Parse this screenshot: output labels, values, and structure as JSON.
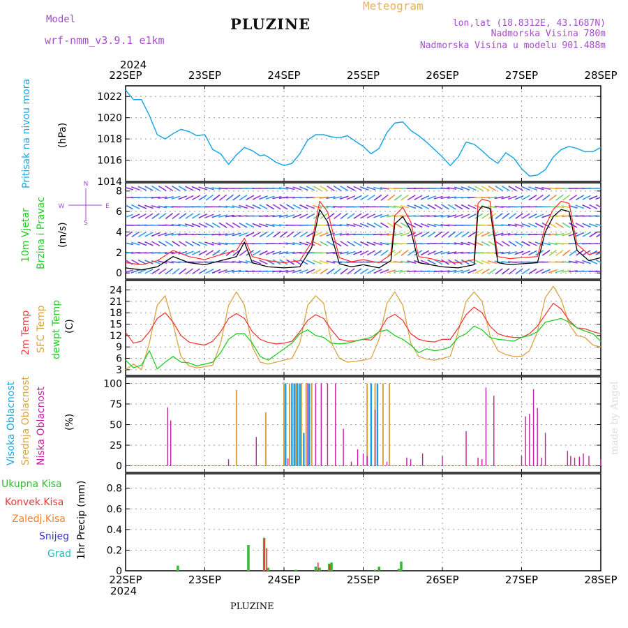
{
  "header": {
    "model_label": "Model",
    "model_name": "wrf-nmm_v3.9.1  e1km",
    "title": "PLUZINE",
    "product": "Meteogram",
    "lonlat": "lon,lat (18.8312E, 43.1687N)",
    "elevation": "Nadmorska Visina 780m",
    "model_elevation": "Nadmorska Visina u modelu 901.488m"
  },
  "footer": {
    "station": "PLUZINE",
    "credit": "made by Angel"
  },
  "colors": {
    "pressure": "#1aa7e6",
    "speed": "#000000",
    "gust": "#ff2a2a",
    "t2m": "#ee3b3b",
    "sfc": "#d9a441",
    "dew": "#22cc22",
    "high_cloud": "#1a9ee6",
    "mid_cloud": "#dba23c",
    "low_cloud": "#c21ea0",
    "total_precip": "#33bb33",
    "conv_precip": "#ee3333",
    "frz_precip": "#ff7f24",
    "snow": "#3333dd",
    "hail": "#22bbbb",
    "purple": "#a64dcc"
  },
  "panels": {
    "pressure": {
      "label": "Pritisak na nivou mora",
      "unit": "(hPa)"
    },
    "wind": {
      "label1": "10m Vjetar",
      "label2": "Brzina i Pravac",
      "unit": "(m/s)"
    },
    "temp": {
      "label1": "2m Temp",
      "label2": "SFC Temp",
      "label3": "dewpt Temp",
      "unit": "(C)"
    },
    "cloud": {
      "label1": "Visoka Oblacnost",
      "label2": "Srednja Oblacnost",
      "label3": "Niska Oblacnost",
      "unit": "(%)"
    },
    "precip": {
      "l1": "Ukupna Kisa",
      "l2": "Konvek.Kisa",
      "l3": "Zaledj.Kisa",
      "l4": "Snijeg",
      "l5": "Grad",
      "unit": "1hr Precip (mm)"
    }
  },
  "compass": {
    "n": "N",
    "s": "S",
    "e": "E",
    "w": "W"
  },
  "chart_data": {
    "type": "line",
    "x": {
      "year": "2024",
      "ticks": [
        "22SEP",
        "23SEP",
        "24SEP",
        "25SEP",
        "26SEP",
        "27SEP",
        "28SEP"
      ],
      "start": "2024-09-22T00",
      "end": "2024-09-28T00",
      "unit": "days"
    },
    "pressure": {
      "ylim": [
        1014,
        1023
      ],
      "yticks": [
        1014,
        1016,
        1018,
        1020,
        1022
      ],
      "t": [
        0,
        0.1,
        0.2,
        0.3,
        0.4,
        0.5,
        0.6,
        0.7,
        0.8,
        0.9,
        1.0,
        1.1,
        1.2,
        1.3,
        1.4,
        1.5,
        1.6,
        1.7,
        1.75,
        1.8,
        1.9,
        2.0,
        2.1,
        2.2,
        2.3,
        2.4,
        2.5,
        2.6,
        2.7,
        2.8,
        2.9,
        3.0,
        3.1,
        3.2,
        3.3,
        3.4,
        3.5,
        3.6,
        3.7,
        3.8,
        3.9,
        4.0,
        4.1,
        4.2,
        4.3,
        4.4,
        4.5,
        4.6,
        4.7,
        4.8,
        4.9,
        5.0,
        5.1,
        5.2,
        5.3,
        5.4,
        5.5,
        5.6,
        5.7,
        5.8,
        5.9,
        6.0
      ],
      "values": [
        1022.6,
        1021.7,
        1021.7,
        1020.2,
        1018.4,
        1018.0,
        1018.5,
        1018.9,
        1018.7,
        1018.3,
        1018.4,
        1017.0,
        1016.6,
        1015.6,
        1016.5,
        1017.2,
        1016.9,
        1016.4,
        1016.5,
        1016.3,
        1015.8,
        1015.5,
        1015.7,
        1016.6,
        1017.9,
        1018.4,
        1018.4,
        1018.2,
        1018.1,
        1018.3,
        1017.8,
        1017.3,
        1016.6,
        1017.1,
        1018.6,
        1019.5,
        1019.6,
        1018.8,
        1018.3,
        1017.7,
        1017.0,
        1016.3,
        1015.5,
        1016.3,
        1017.7,
        1017.5,
        1016.9,
        1016.2,
        1015.7,
        1016.7,
        1016.2,
        1015.2,
        1014.5,
        1014.6,
        1015.1,
        1016.3,
        1017.0,
        1017.3,
        1017.1,
        1016.8,
        1016.8,
        1017.2
      ]
    },
    "wind": {
      "ylim": [
        -0.6,
        8.8
      ],
      "yticks": [
        0,
        2,
        4,
        6,
        8
      ],
      "t": [
        0,
        0.2,
        0.4,
        0.6,
        0.8,
        1.0,
        1.2,
        1.4,
        1.5,
        1.6,
        1.8,
        2.0,
        2.2,
        2.35,
        2.45,
        2.55,
        2.7,
        2.85,
        3.0,
        3.2,
        3.35,
        3.4,
        3.5,
        3.6,
        3.7,
        3.85,
        4.0,
        4.2,
        4.4,
        4.45,
        4.5,
        4.6,
        4.7,
        4.85,
        5.0,
        5.2,
        5.3,
        5.4,
        5.5,
        5.6,
        5.7,
        5.85,
        6.0
      ],
      "speed": [
        0.5,
        0.3,
        0.6,
        1.6,
        1.0,
        0.8,
        1.2,
        1.6,
        3.0,
        1.0,
        0.6,
        0.5,
        0.6,
        2.5,
        6.2,
        5.0,
        0.9,
        0.6,
        0.8,
        0.5,
        1.2,
        4.8,
        5.5,
        4.2,
        1.0,
        0.8,
        0.6,
        0.5,
        0.8,
        6.0,
        6.5,
        6.3,
        1.0,
        0.8,
        0.9,
        1.0,
        4.0,
        5.5,
        6.2,
        6.0,
        2.2,
        1.2,
        1.5
      ],
      "gust": [
        1.0,
        0.8,
        1.2,
        2.2,
        1.6,
        1.3,
        1.8,
        2.2,
        3.4,
        1.6,
        1.2,
        1.0,
        1.2,
        3.0,
        7.0,
        6.0,
        1.5,
        1.1,
        1.3,
        1.0,
        1.8,
        5.6,
        6.4,
        5.0,
        1.6,
        1.4,
        1.1,
        1.0,
        1.3,
        6.8,
        7.2,
        7.0,
        1.6,
        1.4,
        1.5,
        1.6,
        4.6,
        6.2,
        7.0,
        6.8,
        2.8,
        1.8,
        2.1
      ]
    },
    "temperature": {
      "ylim": [
        1.5,
        26.5
      ],
      "yticks": [
        3,
        6,
        9,
        12,
        15,
        18,
        21,
        24
      ],
      "t": [
        0,
        0.1,
        0.2,
        0.3,
        0.4,
        0.5,
        0.6,
        0.7,
        0.8,
        0.9,
        1.0,
        1.1,
        1.2,
        1.3,
        1.4,
        1.5,
        1.6,
        1.7,
        1.8,
        1.9,
        2.0,
        2.1,
        2.2,
        2.3,
        2.4,
        2.5,
        2.6,
        2.7,
        2.8,
        2.9,
        3.0,
        3.1,
        3.2,
        3.3,
        3.4,
        3.5,
        3.6,
        3.7,
        3.8,
        3.9,
        4.0,
        4.1,
        4.2,
        4.3,
        4.4,
        4.5,
        4.6,
        4.7,
        4.8,
        4.9,
        5.0,
        5.1,
        5.2,
        5.3,
        5.4,
        5.5,
        5.6,
        5.7,
        5.8,
        5.9,
        6.0
      ],
      "t2m": [
        12.8,
        10.0,
        10.5,
        13.0,
        16.5,
        18.0,
        15.5,
        12.0,
        10.3,
        9.8,
        9.5,
        10.5,
        13.0,
        16.5,
        17.8,
        16.5,
        13.0,
        11.0,
        10.2,
        9.8,
        10.0,
        10.5,
        13.0,
        16.0,
        17.5,
        16.5,
        13.5,
        11.0,
        10.5,
        10.6,
        11.0,
        10.8,
        13.0,
        16.5,
        17.6,
        16.0,
        12.5,
        11.0,
        10.5,
        10.3,
        11.0,
        11.0,
        14.0,
        17.5,
        19.5,
        18.0,
        14.5,
        12.5,
        11.8,
        11.5,
        11.5,
        12.5,
        14.5,
        17.5,
        20.5,
        19.0,
        16.0,
        14.0,
        13.8,
        13.0,
        12.5
      ],
      "sfc": [
        3.0,
        4.5,
        3.0,
        10.0,
        20.0,
        22.5,
        15.0,
        6.5,
        4.0,
        3.5,
        3.8,
        4.2,
        10.0,
        20.0,
        23.5,
        20.0,
        9.0,
        5.0,
        4.5,
        5.0,
        5.5,
        6.0,
        10.0,
        20.0,
        22.5,
        20.5,
        10.0,
        6.0,
        5.0,
        5.2,
        5.5,
        6.0,
        11.0,
        20.5,
        23.5,
        20.0,
        10.0,
        6.5,
        5.8,
        5.5,
        6.0,
        6.5,
        13.0,
        21.0,
        23.5,
        21.0,
        12.0,
        8.0,
        7.0,
        6.5,
        6.5,
        8.0,
        13.0,
        22.0,
        25.0,
        21.5,
        15.0,
        12.0,
        11.5,
        9.5,
        9.0
      ],
      "dew": [
        5.5,
        3.5,
        4.2,
        8.0,
        3.2,
        5.0,
        6.5,
        5.0,
        4.8,
        4.0,
        4.5,
        5.0,
        7.5,
        11.0,
        12.5,
        12.5,
        10.0,
        6.5,
        5.5,
        7.0,
        8.5,
        10.0,
        12.5,
        13.5,
        12.0,
        11.5,
        10.0,
        9.8,
        10.0,
        10.5,
        11.0,
        11.5,
        13.0,
        13.5,
        12.0,
        11.0,
        9.5,
        7.5,
        8.5,
        8.0,
        8.3,
        9.0,
        11.5,
        12.5,
        14.5,
        13.5,
        11.5,
        11.0,
        10.8,
        10.5,
        11.5,
        12.0,
        13.0,
        15.5,
        16.0,
        16.5,
        15.5,
        14.0,
        13.2,
        12.5,
        10.5
      ]
    },
    "cloud": {
      "ylim": [
        -8,
        108
      ],
      "yticks": [
        0,
        25,
        50,
        75,
        100
      ],
      "low_t": [
        0.53,
        0.57,
        1.3,
        1.65,
        2.05,
        2.3,
        2.4,
        2.47,
        2.55,
        2.65,
        2.75,
        2.85,
        2.93,
        3.0,
        3.05,
        3.15,
        3.3,
        3.55,
        3.6,
        3.75,
        4.0,
        4.3,
        4.45,
        4.5,
        4.55,
        4.65,
        5.0,
        5.05,
        5.1,
        5.15,
        5.2,
        5.25,
        5.3,
        5.58,
        5.62,
        5.67,
        5.73,
        5.78,
        5.85,
        6.0
      ],
      "low_v": [
        71,
        55,
        8,
        35,
        9,
        100,
        100,
        100,
        100,
        100,
        45,
        5,
        20,
        15,
        12,
        68,
        5,
        10,
        8,
        15,
        12,
        42,
        10,
        8,
        95,
        85,
        12,
        60,
        63,
        93,
        70,
        10,
        40,
        18,
        12,
        10,
        11,
        15,
        12,
        8
      ],
      "mid_t": [
        1.4,
        1.77,
        2.0,
        2.07,
        2.15,
        2.22,
        2.28,
        2.35,
        3.05,
        3.15,
        3.25,
        3.33
      ],
      "mid_v": [
        92,
        65,
        100,
        100,
        100,
        100,
        100,
        100,
        100,
        100,
        100,
        100
      ],
      "high_t": [
        2.02,
        2.1,
        2.13,
        2.17,
        2.2,
        2.25,
        2.32,
        3.1,
        3.18
      ],
      "high_v": [
        100,
        100,
        100,
        100,
        100,
        40,
        100,
        100,
        100
      ]
    },
    "precip": {
      "ylim": [
        0,
        0.94
      ],
      "yticks": [
        0,
        0.2,
        0.4,
        0.6,
        0.8
      ],
      "total_t": [
        0.66,
        1.55,
        1.75,
        1.8,
        2.15,
        2.4,
        2.45,
        2.57,
        2.6,
        3.15,
        3.2,
        3.45,
        3.48
      ],
      "total_v": [
        0.05,
        0.25,
        0.32,
        0.03,
        0.01,
        0.04,
        0.03,
        0.07,
        0.08,
        0.01,
        0.04,
        0.02,
        0.09
      ],
      "conv_t": [
        1.75,
        1.78,
        2.43,
        2.58,
        3.2
      ],
      "conv_v": [
        0.31,
        0.22,
        0.08,
        0.06,
        0.02
      ]
    }
  }
}
